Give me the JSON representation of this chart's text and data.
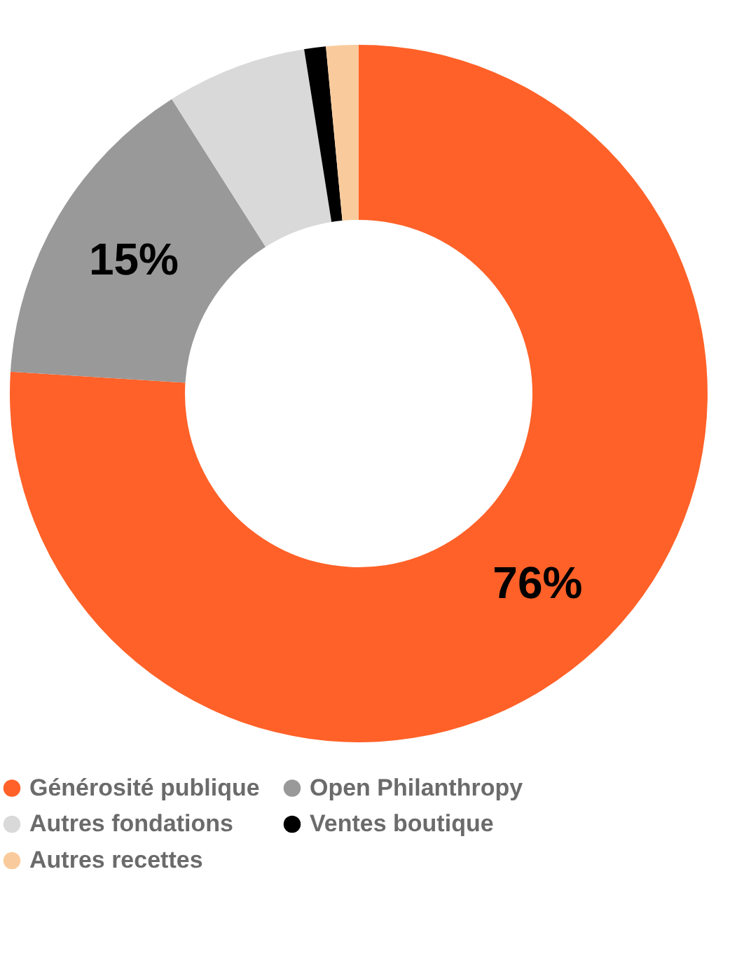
{
  "chart_data": {
    "type": "donut",
    "categories": [
      "Générosité publique",
      "Open Philanthropy",
      "Autres fondations",
      "Ventes boutique",
      "Autres recettes"
    ],
    "values": [
      76,
      15,
      6.5,
      1,
      1.5
    ],
    "colors": [
      "#ff6128",
      "#999999",
      "#d9d9d9",
      "#000000",
      "#f9cb9c"
    ],
    "value_labels": [
      "76%",
      "15%",
      null,
      null,
      null
    ],
    "legend": "bottom"
  }
}
